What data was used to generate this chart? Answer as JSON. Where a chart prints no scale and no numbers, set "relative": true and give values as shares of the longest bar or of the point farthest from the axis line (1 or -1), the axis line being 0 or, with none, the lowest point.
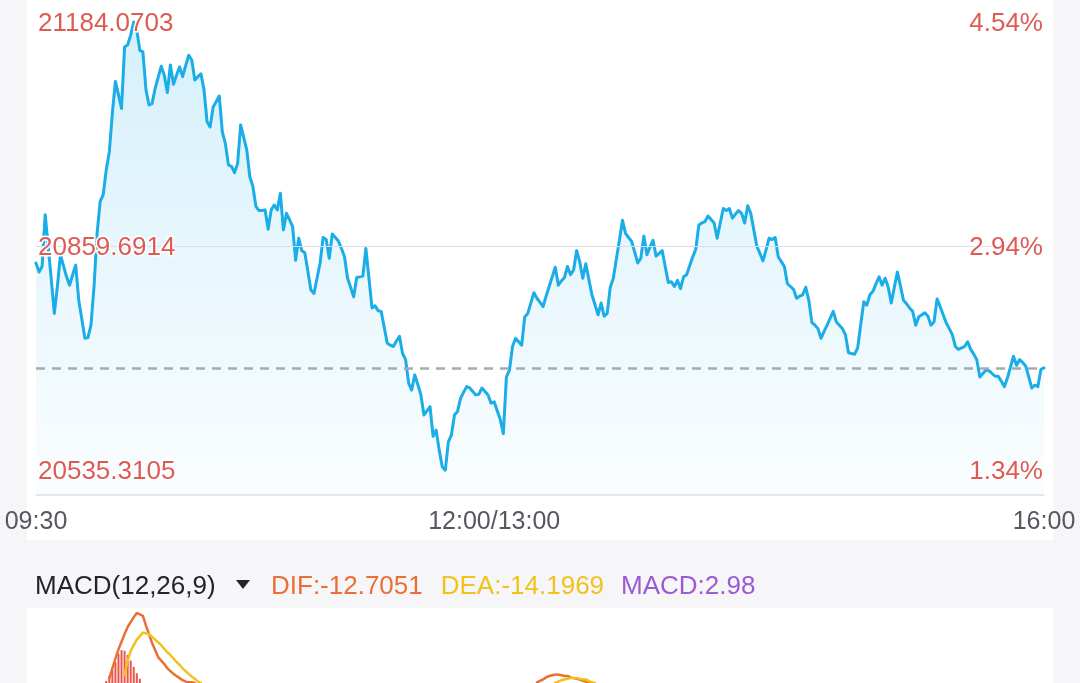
{
  "chart_data": [
    {
      "type": "area",
      "color": "#1aade8",
      "marker": "none",
      "categories": [
        "09:30",
        null,
        null,
        null,
        null,
        null,
        null,
        null,
        null,
        null,
        null,
        null,
        null,
        null,
        null,
        null,
        null,
        null,
        null,
        null,
        null,
        null,
        null,
        null,
        null,
        null,
        null,
        null,
        null,
        null,
        null,
        null,
        null,
        null,
        null,
        null,
        null,
        null,
        null,
        null,
        null,
        null,
        null,
        null,
        null,
        null,
        null,
        null,
        null,
        null,
        null,
        null,
        null,
        null,
        null,
        null,
        null,
        null,
        null,
        null,
        null,
        null,
        null,
        null,
        null,
        null,
        null,
        null,
        null,
        null,
        null,
        null,
        null,
        null,
        null,
        null,
        null,
        null,
        null,
        null,
        null,
        null,
        null,
        null,
        null,
        null,
        null,
        null,
        null,
        null,
        null,
        null,
        null,
        null,
        null,
        null,
        null,
        null,
        null,
        null,
        null,
        null,
        null,
        null,
        null,
        null,
        null,
        null,
        null,
        null,
        null,
        null,
        null,
        null,
        null,
        null,
        null,
        null,
        null,
        null,
        null,
        null,
        null,
        null,
        null,
        null,
        null,
        null,
        null,
        null,
        null,
        null,
        null,
        null,
        null,
        null,
        null,
        null,
        null,
        null,
        null,
        null,
        null,
        null,
        null,
        null,
        null,
        null,
        null,
        null,
        "12:00/13:00",
        null,
        null,
        null,
        null,
        null,
        null,
        null,
        null,
        null,
        null,
        null,
        null,
        null,
        null,
        null,
        null,
        null,
        null,
        null,
        null,
        null,
        null,
        null,
        null,
        null,
        null,
        null,
        null,
        null,
        null,
        null,
        null,
        null,
        null,
        null,
        null,
        null,
        null,
        null,
        null,
        null,
        null,
        null,
        null,
        null,
        null,
        null,
        null,
        null,
        null,
        null,
        null,
        null,
        null,
        null,
        null,
        null,
        null,
        null,
        null,
        null,
        null,
        null,
        null,
        null,
        null,
        null,
        null,
        null,
        null,
        null,
        null,
        null,
        null,
        null,
        null,
        null,
        null,
        null,
        null,
        null,
        null,
        null,
        null,
        null,
        null,
        null,
        null,
        null,
        null,
        null,
        null,
        null,
        null,
        null,
        null,
        null,
        null,
        null,
        null,
        null,
        null,
        null,
        null,
        null,
        null,
        null,
        null,
        null,
        null,
        null,
        null,
        null,
        null,
        null,
        null,
        null,
        null,
        null,
        null,
        null,
        null,
        null,
        null,
        null,
        null,
        null,
        null,
        null,
        null,
        null,
        null,
        null,
        null,
        null,
        null,
        null,
        null,
        null,
        null,
        null,
        null,
        null,
        null,
        null,
        null,
        null,
        null,
        null,
        null,
        null,
        null,
        null,
        null,
        null,
        null,
        null,
        null,
        null,
        null,
        null,
        null,
        null,
        null,
        null,
        null,
        null,
        null,
        null,
        null,
        null,
        null,
        null,
        null,
        null,
        null,
        null,
        null,
        null,
        "16:00"
      ],
      "values": [
        20835,
        20822,
        20830,
        20905,
        20859,
        20811,
        20762,
        20801,
        20847,
        20831,
        20815,
        20803,
        20818,
        20832,
        20781,
        20754,
        20726,
        20727,
        20745,
        20801,
        20878,
        20924,
        20934,
        20970,
        20996,
        21052,
        21098,
        21079,
        21059,
        21148,
        21151,
        21165,
        21184,
        21172,
        21143,
        21141,
        21086,
        21064,
        21066,
        21088,
        21104,
        21120,
        21107,
        21082,
        21122,
        21094,
        21107,
        21119,
        21105,
        21121,
        21136,
        21129,
        21100,
        21105,
        21109,
        21086,
        21040,
        21032,
        21061,
        21069,
        21077,
        21025,
        21008,
        20977,
        20975,
        20966,
        20979,
        21035,
        21017,
        20999,
        20960,
        20946,
        20917,
        20911,
        20911,
        20912,
        20884,
        20912,
        20919,
        20912,
        20936,
        20883,
        20907,
        20898,
        20888,
        20839,
        20871,
        20853,
        20850,
        20823,
        20796,
        20791,
        20813,
        20835,
        20872,
        20869,
        20842,
        20877,
        20872,
        20867,
        20856,
        20844,
        20813,
        20800,
        20786,
        20814,
        20815,
        20816,
        20856,
        20813,
        20770,
        20773,
        20766,
        20765,
        20742,
        20719,
        20716,
        20714,
        20722,
        20729,
        20704,
        20695,
        20661,
        20651,
        20673,
        20659,
        20644,
        20615,
        20621,
        20627,
        20584,
        20593,
        20564,
        20540,
        20535,
        20576,
        20586,
        20615,
        20620,
        20639,
        20648,
        20656,
        20654,
        20649,
        20644,
        20645,
        20654,
        20649,
        20644,
        20632,
        20634,
        20621,
        20608,
        20588,
        20670,
        20680,
        20714,
        20726,
        20721,
        20716,
        20757,
        20762,
        20777,
        20792,
        20784,
        20778,
        20772,
        20787,
        20801,
        20815,
        20829,
        20803,
        20809,
        20814,
        20830,
        20818,
        20825,
        20853,
        20837,
        20813,
        20834,
        20811,
        20789,
        20775,
        20760,
        20777,
        20758,
        20762,
        20800,
        20813,
        20841,
        20868,
        20897,
        20878,
        20872,
        20866,
        20851,
        20835,
        20842,
        20874,
        20847,
        20858,
        20868,
        20845,
        20849,
        20853,
        20830,
        20807,
        20808,
        20801,
        20810,
        20798,
        20815,
        20818,
        20831,
        20844,
        20855,
        20890,
        20893,
        20895,
        20903,
        20898,
        20893,
        20871,
        20893,
        20914,
        20911,
        20914,
        20900,
        20906,
        20911,
        20907,
        20893,
        20918,
        20907,
        20883,
        20859,
        20849,
        20838,
        20854,
        20871,
        20869,
        20872,
        20844,
        20837,
        20830,
        20805,
        20801,
        20797,
        20784,
        20787,
        20789,
        20800,
        20781,
        20749,
        20745,
        20740,
        20726,
        20736,
        20745,
        20755,
        20765,
        20750,
        20745,
        20740,
        20731,
        20705,
        20704,
        20703,
        20712,
        20746,
        20779,
        20774,
        20789,
        20794,
        20805,
        20815,
        20803,
        20813,
        20800,
        20777,
        20800,
        20822,
        20802,
        20781,
        20776,
        20770,
        20765,
        20745,
        20757,
        20760,
        20763,
        20758,
        20745,
        20750,
        20783,
        20772,
        20760,
        20748,
        20740,
        20731,
        20714,
        20710,
        20712,
        20714,
        20721,
        20710,
        20703,
        20695,
        20670,
        20675,
        20680,
        20679,
        20675,
        20671,
        20671,
        20664,
        20656,
        20668,
        20684,
        20700,
        20687,
        20695,
        20691,
        20686,
        20670,
        20654,
        20658,
        20656,
        20681,
        20683
      ],
      "ylim": [
        20499,
        21216
      ],
      "yticks": [
        20535.3105,
        20859.6914,
        21184.0703
      ],
      "y2lim": [
        1.159,
        4.698
      ],
      "y2ticks": [
        {
          "value": 1.34,
          "label": "1.34%"
        },
        {
          "value": 2.94,
          "label": "2.94%"
        },
        {
          "value": 4.54,
          "label": "4.54%"
        }
      ],
      "ref_lines": [
        {
          "axis": "y",
          "value": 20859.6914,
          "color": "#dcdcde",
          "line_style": "solid"
        },
        {
          "axis": "y",
          "value": 20683,
          "color": "#a7abb1",
          "line_style": "dashed"
        }
      ]
    },
    {
      "type": "line",
      "title": "MACD(12,26,9)",
      "annotations": [
        "MACD:2.98"
      ],
      "relative": true,
      "marker": "none",
      "legend": "top",
      "categories": [
        null,
        null,
        null,
        null,
        null,
        null,
        null,
        null,
        null,
        null,
        null,
        null,
        null,
        null,
        null,
        null,
        null,
        null,
        null,
        null,
        null,
        null,
        null,
        null,
        null,
        null,
        null,
        null,
        null,
        null,
        null,
        null,
        null,
        null,
        null,
        null,
        null,
        null,
        null,
        null,
        null,
        null,
        null,
        null,
        null,
        null,
        null,
        null,
        null,
        null,
        null,
        null,
        null,
        null,
        null,
        null,
        null,
        null,
        null,
        null,
        null,
        null,
        null,
        null,
        null,
        null,
        null,
        null,
        null,
        null,
        null,
        null,
        null,
        null,
        null,
        null,
        null,
        null,
        null,
        null,
        null,
        null,
        null,
        null,
        null,
        null,
        null,
        null,
        null,
        null,
        null,
        null,
        null,
        null,
        null,
        null,
        null,
        null,
        null,
        null,
        null,
        null,
        null,
        null,
        null,
        null,
        null,
        null,
        null,
        null,
        null,
        null,
        null,
        null,
        null,
        null,
        null,
        null,
        null,
        null,
        null,
        null,
        null,
        null,
        null,
        null,
        null,
        null,
        null,
        null,
        null,
        null,
        null,
        null,
        null,
        null,
        null,
        null,
        null,
        null,
        null,
        null,
        null,
        null,
        null,
        null,
        null,
        null,
        null,
        null,
        null,
        null,
        null,
        null,
        null,
        null,
        null,
        null,
        null,
        null,
        null,
        null,
        null,
        null,
        null,
        null,
        null,
        null,
        null,
        null,
        null,
        null,
        null,
        null,
        null,
        null,
        null,
        null,
        null,
        null,
        null,
        null,
        null,
        null,
        null,
        null,
        null,
        null,
        null,
        null,
        null,
        null,
        null,
        null,
        null,
        null,
        null,
        null,
        null,
        null,
        null,
        null,
        null,
        null,
        null,
        null,
        null,
        null,
        null,
        null,
        null,
        null,
        null,
        null,
        null,
        null,
        null,
        null,
        null,
        null,
        null,
        null,
        null,
        null,
        null,
        null,
        null,
        null,
        null,
        null,
        null,
        null,
        null,
        null,
        null,
        null,
        null,
        null,
        null,
        null,
        null,
        null,
        null,
        null,
        null,
        null,
        null,
        null,
        null,
        null,
        null,
        null,
        null,
        null,
        null,
        null,
        null,
        null,
        null,
        null,
        null,
        null,
        null,
        null,
        null,
        null,
        null,
        null,
        null,
        null,
        null,
        null,
        null,
        null,
        null,
        null,
        null,
        null,
        null,
        null,
        null,
        null,
        null,
        null,
        null,
        null,
        null,
        null,
        null,
        null,
        null,
        null,
        null,
        null,
        null,
        null,
        null,
        null,
        null,
        null,
        null,
        null,
        null,
        null,
        null,
        null,
        null,
        null,
        null,
        null,
        null,
        null,
        null,
        null,
        null,
        null,
        null,
        null,
        null,
        null,
        null,
        null,
        null,
        null,
        null,
        null,
        null,
        null,
        null,
        null,
        null
      ],
      "series": [
        {
          "name": "DIF:-12.7051",
          "color": "#ec6e37",
          "values": [
            null,
            null,
            null,
            null,
            null,
            null,
            null,
            null,
            null,
            null,
            null,
            null,
            null,
            null,
            null,
            null,
            null,
            null,
            null,
            null,
            null,
            null,
            null,
            null,
            0.07,
            0.21,
            0.35,
            0.48,
            0.59,
            0.7,
            0.8,
            0.87,
            0.94,
            1,
            0.98,
            0.96,
            0.82,
            0.7,
            0.57,
            0.47,
            0.37,
            0.32,
            0.27,
            0.21,
            0.17,
            0.13,
            0.1,
            0.07,
            0.04,
            0.02,
            0.01,
            0.01,
            0,
            null,
            null,
            null,
            null,
            null,
            null,
            null,
            null,
            null,
            null,
            null,
            null,
            null,
            null,
            null,
            null,
            null,
            null,
            null,
            null,
            null,
            null,
            null,
            null,
            null,
            null,
            null,
            null,
            null,
            null,
            null,
            null,
            null,
            null,
            null,
            null,
            null,
            null,
            null,
            null,
            null,
            null,
            null,
            null,
            null,
            null,
            null,
            null,
            null,
            null,
            null,
            null,
            null,
            null,
            null,
            null,
            null,
            null,
            null,
            null,
            null,
            null,
            null,
            null,
            null,
            null,
            null,
            null,
            null,
            null,
            null,
            null,
            null,
            null,
            null,
            null,
            null,
            null,
            null,
            null,
            null,
            null,
            null,
            null,
            null,
            null,
            null,
            null,
            null,
            null,
            null,
            null,
            null,
            null,
            null,
            null,
            null,
            null,
            null,
            null,
            null,
            null,
            null,
            null,
            null,
            null,
            null,
            null,
            null,
            null,
            null,
            0.01,
            0.03,
            0.05,
            0.08,
            0.1,
            0.11,
            0.12,
            0.12,
            0.11,
            0.1,
            0.1,
            0.08,
            0.07,
            0.06,
            0.05,
            0.03,
            0.02,
            0.01,
            0,
            null,
            null,
            null,
            null,
            null,
            null,
            null,
            null,
            null,
            null,
            null,
            null,
            null,
            null,
            null,
            null,
            null,
            null,
            null,
            null,
            null,
            null,
            null,
            null,
            null,
            null,
            null,
            null,
            null,
            null,
            null,
            null,
            null,
            null,
            null,
            null,
            null,
            null,
            null,
            null,
            null,
            null,
            null,
            null,
            null,
            null,
            null,
            null,
            null,
            null,
            null,
            null,
            null,
            null,
            null,
            null,
            null,
            null,
            null,
            null,
            null,
            null,
            null,
            null,
            null,
            null,
            null,
            null,
            null,
            null,
            null,
            null,
            null,
            null,
            null,
            null,
            null,
            null,
            null,
            null,
            null,
            null,
            null,
            null,
            null,
            null,
            null,
            null,
            null,
            null,
            null,
            null,
            null,
            null,
            null,
            null,
            null,
            null,
            null,
            null,
            null,
            null,
            null,
            null,
            null,
            null,
            null,
            null,
            null,
            null,
            null,
            null,
            null,
            null,
            null,
            null,
            null,
            null,
            null,
            null,
            null,
            null,
            null,
            null,
            null,
            null,
            null,
            null,
            null,
            null,
            null,
            null,
            null,
            null,
            null,
            null,
            null,
            null,
            null,
            null,
            null,
            null,
            null,
            null,
            null,
            null,
            null,
            null
          ]
        },
        {
          "name": "DEA:-14.1969",
          "color": "#f1c21b",
          "values": [
            null,
            null,
            null,
            null,
            null,
            null,
            null,
            null,
            null,
            null,
            null,
            null,
            null,
            null,
            null,
            null,
            null,
            null,
            null,
            null,
            null,
            null,
            null,
            null,
            null,
            null,
            null,
            null,
            null,
            0.11,
            0.32,
            0.46,
            0.54,
            0.62,
            0.67,
            0.72,
            0.71,
            0.7,
            0.66,
            0.62,
            0.58,
            0.54,
            0.49,
            0.44,
            0.4,
            0.35,
            0.3,
            0.26,
            0.21,
            0.17,
            0.13,
            0.09,
            0.06,
            0.02,
            0,
            null,
            null,
            null,
            null,
            null,
            null,
            null,
            null,
            null,
            null,
            null,
            null,
            null,
            null,
            null,
            null,
            null,
            null,
            null,
            null,
            null,
            null,
            null,
            null,
            null,
            null,
            null,
            null,
            null,
            null,
            null,
            null,
            null,
            null,
            null,
            null,
            null,
            null,
            null,
            null,
            null,
            null,
            null,
            null,
            null,
            null,
            null,
            null,
            null,
            null,
            null,
            null,
            null,
            null,
            null,
            null,
            null,
            null,
            null,
            null,
            null,
            null,
            null,
            null,
            null,
            null,
            null,
            null,
            null,
            null,
            null,
            null,
            null,
            null,
            null,
            null,
            null,
            null,
            null,
            null,
            null,
            null,
            null,
            null,
            null,
            null,
            null,
            null,
            null,
            null,
            null,
            null,
            null,
            null,
            null,
            null,
            null,
            null,
            null,
            null,
            null,
            null,
            null,
            null,
            null,
            null,
            null,
            null,
            null,
            null,
            null,
            null,
            null,
            null,
            null,
            0,
            0.02,
            0.04,
            0.05,
            0.06,
            0.07,
            0.07,
            0.07,
            0.06,
            0.05,
            0.05,
            0.03,
            0.01,
            0,
            null,
            null,
            null,
            null,
            null,
            null,
            null,
            null,
            null,
            null,
            null,
            null,
            null,
            null,
            null,
            null,
            null,
            null,
            null,
            null,
            null,
            null,
            null,
            null,
            null,
            null,
            null,
            null,
            null,
            null,
            null,
            null,
            null,
            null,
            null,
            null,
            null,
            null,
            null,
            null,
            null,
            null,
            null,
            null,
            null,
            null,
            null,
            null,
            null,
            null,
            null,
            null,
            null,
            null,
            null,
            null,
            null,
            null,
            null,
            null,
            null,
            null,
            null,
            null,
            null,
            null,
            null,
            null,
            null,
            null,
            null,
            null,
            null,
            null,
            null,
            null,
            null,
            null,
            null,
            null,
            null,
            null,
            null,
            null,
            null,
            null,
            null,
            null,
            null,
            null,
            null,
            null,
            null,
            null,
            null,
            null,
            null,
            null,
            null,
            null,
            null,
            null,
            null,
            null,
            null,
            null,
            null,
            null,
            null,
            null,
            null,
            null,
            null,
            null,
            null,
            null,
            null,
            null,
            null,
            null,
            null,
            null,
            null,
            null,
            null,
            null,
            null,
            null,
            null,
            null,
            null,
            null,
            null,
            null,
            null,
            null,
            null,
            null,
            null,
            null,
            null,
            null,
            null,
            null,
            null,
            null,
            null
          ]
        },
        {
          "type": "bar",
          "color": "#e8574c",
          "values": [
            null,
            null,
            null,
            null,
            null,
            null,
            null,
            null,
            null,
            null,
            null,
            null,
            null,
            null,
            null,
            null,
            null,
            null,
            null,
            null,
            null,
            null,
            null,
            0.03,
            0.1,
            0.19,
            0.3,
            0.42,
            0.47,
            0.46,
            0.4,
            0.32,
            0.23,
            0.14,
            0.06,
            null,
            null,
            null,
            null,
            null,
            null,
            null,
            null,
            null,
            null,
            null,
            null,
            null,
            null,
            null,
            null,
            null,
            null,
            null,
            null,
            null,
            null,
            null,
            null,
            null,
            null,
            null,
            null,
            null,
            null,
            null,
            null,
            null,
            null,
            null,
            null,
            null,
            null,
            null,
            null,
            null,
            null,
            null,
            null,
            null,
            null,
            null,
            null,
            null,
            null,
            null,
            null,
            null,
            null,
            null,
            null,
            null,
            null,
            null,
            null,
            null,
            null,
            null,
            null,
            null,
            null,
            null,
            null,
            null,
            null,
            null,
            null,
            null,
            null,
            null,
            null,
            null,
            null,
            null,
            null,
            null,
            null,
            null,
            null,
            null,
            null,
            null,
            null,
            null,
            null,
            null,
            null,
            null,
            null,
            null,
            null,
            null,
            null,
            null,
            null,
            null,
            null,
            null,
            null,
            null,
            null,
            null,
            null,
            null,
            null,
            null,
            null,
            null,
            null,
            null,
            null,
            null,
            null,
            null,
            null,
            null,
            null,
            null,
            null,
            null,
            null,
            null,
            null,
            null,
            null,
            null,
            null,
            null,
            null,
            null,
            null,
            null,
            null,
            null,
            null,
            null,
            null,
            null,
            null,
            null,
            null,
            null,
            null,
            null,
            null,
            null,
            null,
            null,
            null,
            null,
            null,
            null,
            null,
            null,
            null,
            null,
            null,
            null,
            null,
            null,
            null,
            null,
            null,
            null,
            null,
            null,
            null,
            null,
            null,
            null,
            null,
            null,
            null,
            null,
            null,
            null,
            null,
            null,
            null,
            null,
            null,
            null,
            null,
            null,
            null,
            null,
            null,
            null,
            null,
            null,
            null,
            null,
            null,
            null,
            null,
            null,
            null,
            null,
            null,
            null,
            null,
            null,
            null,
            null,
            null,
            null,
            null,
            null,
            null,
            null,
            null,
            null,
            null,
            null,
            null,
            null,
            null,
            null,
            null,
            null,
            null,
            null,
            null,
            null,
            null,
            null,
            null,
            null,
            null,
            null,
            null,
            null,
            null,
            null,
            null,
            null,
            null,
            null,
            null,
            null,
            null,
            null,
            null,
            null,
            null,
            null,
            null,
            null,
            null,
            null,
            null,
            null,
            null,
            null,
            null,
            null,
            null,
            null,
            null,
            null,
            null,
            null,
            null,
            null,
            null,
            null,
            null,
            null,
            null,
            null,
            null,
            null,
            null,
            null,
            null,
            null,
            null,
            null,
            null,
            null,
            null,
            null,
            null,
            null,
            null,
            null,
            null,
            null,
            null,
            null,
            null
          ]
        }
      ]
    }
  ]
}
